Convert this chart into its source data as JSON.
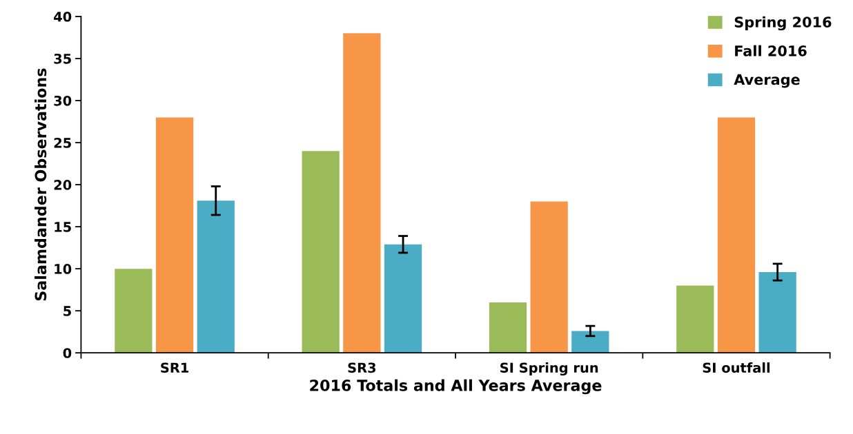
{
  "chart_data": {
    "type": "bar",
    "xlabel": "2016 Totals and All Years Average",
    "ylabel": "Salamdander Observations",
    "categories": [
      "SR1",
      "SR3",
      "SI Spring run",
      "SI outfall"
    ],
    "series": [
      {
        "name": "Spring 2016",
        "color": "#9bbb59",
        "values": [
          10,
          24,
          6,
          8
        ]
      },
      {
        "name": "Fall 2016",
        "color": "#f79646",
        "values": [
          28,
          38,
          18,
          28
        ]
      },
      {
        "name": "Average",
        "color": "#4bacc6",
        "values": [
          18.1,
          12.9,
          2.6,
          9.6
        ],
        "errors": [
          1.7,
          1.0,
          0.6,
          1.0
        ]
      }
    ],
    "ylim": [
      0,
      40
    ],
    "yticks": [
      0,
      5,
      10,
      15,
      20,
      25,
      30,
      35,
      40
    ],
    "grid": false,
    "legend": "top right"
  }
}
